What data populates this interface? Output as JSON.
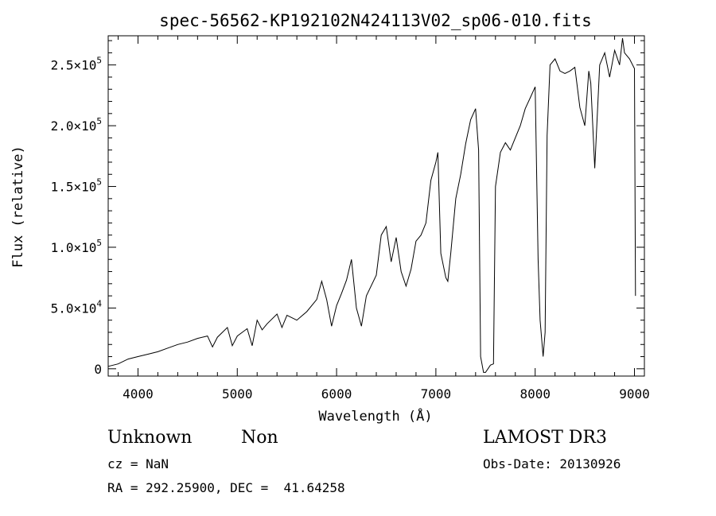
{
  "chart_data": {
    "type": "line",
    "title": "spec-56562-KP192102N424113V02_sp06-010.fits",
    "xlabel": "Wavelength (Å)",
    "ylabel": "Flux (relative)",
    "xlim": [
      3700,
      9100
    ],
    "ylim": [
      -6000,
      274000
    ],
    "x_ticks": [
      4000,
      5000,
      6000,
      7000,
      8000,
      9000
    ],
    "x_tick_labels": [
      "4000",
      "5000",
      "6000",
      "7000",
      "8000",
      "9000"
    ],
    "y_ticks": [
      0,
      50000,
      100000,
      150000,
      200000,
      250000
    ],
    "y_tick_labels": [
      {
        "mantissa": "0",
        "exp": ""
      },
      {
        "mantissa": "5.0×10",
        "exp": "4"
      },
      {
        "mantissa": "1.0×10",
        "exp": "5"
      },
      {
        "mantissa": "1.5×10",
        "exp": "5"
      },
      {
        "mantissa": "2.0×10",
        "exp": "5"
      },
      {
        "mantissa": "2.5×10",
        "exp": "5"
      }
    ],
    "series": [
      {
        "name": "flux",
        "x": [
          3700,
          3800,
          3900,
          4000,
          4100,
          4200,
          4300,
          4400,
          4500,
          4600,
          4700,
          4750,
          4800,
          4900,
          4950,
          5000,
          5100,
          5150,
          5200,
          5250,
          5300,
          5400,
          5450,
          5500,
          5600,
          5700,
          5800,
          5850,
          5900,
          5950,
          6000,
          6050,
          6100,
          6150,
          6200,
          6250,
          6300,
          6400,
          6450,
          6500,
          6550,
          6600,
          6650,
          6700,
          6750,
          6800,
          6850,
          6900,
          6950,
          7000,
          7020,
          7050,
          7100,
          7120,
          7150,
          7200,
          7250,
          7300,
          7350,
          7400,
          7430,
          7450,
          7480,
          7500,
          7550,
          7580,
          7600,
          7650,
          7700,
          7750,
          7800,
          7850,
          7900,
          7950,
          8000,
          8030,
          8050,
          8080,
          8100,
          8120,
          8150,
          8200,
          8250,
          8300,
          8350,
          8400,
          8450,
          8500,
          8540,
          8560,
          8600,
          8650,
          8700,
          8750,
          8800,
          8850,
          8880,
          8900,
          8950,
          9000,
          9010
        ],
        "y": [
          2000,
          4000,
          8000,
          10000,
          12000,
          14000,
          17000,
          20000,
          22000,
          25000,
          27000,
          18000,
          26000,
          34000,
          19000,
          27000,
          33000,
          19000,
          40000,
          32000,
          37000,
          45000,
          34000,
          44000,
          40000,
          47000,
          57000,
          72000,
          57000,
          35000,
          52000,
          62000,
          73000,
          90000,
          50000,
          35000,
          60000,
          77000,
          110000,
          117000,
          88000,
          108000,
          80000,
          68000,
          82000,
          105000,
          110000,
          120000,
          155000,
          170000,
          178000,
          95000,
          75000,
          72000,
          95000,
          140000,
          160000,
          185000,
          205000,
          214000,
          180000,
          10000,
          -3000,
          -3000,
          3000,
          4000,
          150000,
          178000,
          186000,
          180000,
          190000,
          200000,
          214000,
          223000,
          232000,
          90000,
          40000,
          10000,
          30000,
          192000,
          250000,
          255000,
          245000,
          243000,
          245000,
          248000,
          215000,
          200000,
          245000,
          235000,
          165000,
          250000,
          260000,
          240000,
          262000,
          250000,
          272000,
          260000,
          255000,
          247000,
          60000
        ]
      }
    ]
  },
  "info": {
    "object_class": "Unknown",
    "subclass": "Non",
    "survey": "LAMOST DR3",
    "redshift": "cz = NaN",
    "obs_date": "Obs-Date: 20130926",
    "coordinates": "RA = 292.25900, DEC =  41.64258"
  }
}
